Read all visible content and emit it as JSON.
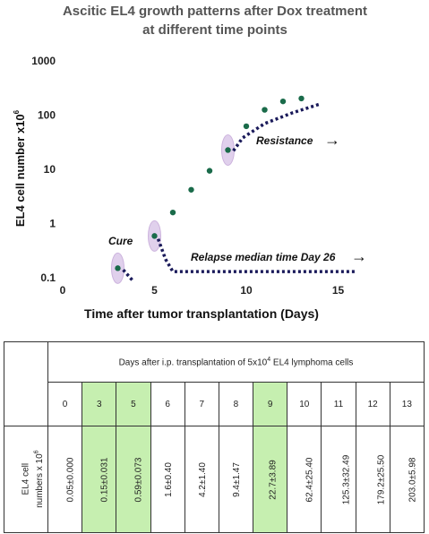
{
  "chart_data": {
    "type": "scatter",
    "title_line1": "Ascitic EL4 growth patterns after Dox treatment",
    "title_line2": "at different time points",
    "xlabel": "Time after tumor transplantation (Days)",
    "ylabel_main": "EL4 cell number x10",
    "ylabel_sup": "6",
    "x_ticks": [
      "0",
      "5",
      "10",
      "15"
    ],
    "y_ticks": [
      "0.1",
      "1",
      "10",
      "100",
      "1000"
    ],
    "y_scale": "log",
    "xlim": [
      0,
      16
    ],
    "ylim": [
      0.1,
      1000
    ],
    "points": [
      {
        "x": 3,
        "y": 0.15
      },
      {
        "x": 5,
        "y": 0.59
      },
      {
        "x": 6,
        "y": 1.6
      },
      {
        "x": 7,
        "y": 4.2
      },
      {
        "x": 8,
        "y": 9.4
      },
      {
        "x": 9,
        "y": 22.7
      },
      {
        "x": 10,
        "y": 62.4
      },
      {
        "x": 11,
        "y": 125.3
      },
      {
        "x": 12,
        "y": 179.2
      },
      {
        "x": 13,
        "y": 203.0
      }
    ],
    "highlighted_days": [
      3,
      5,
      9
    ],
    "trend_cure": [
      {
        "x": 3.3,
        "y": 0.14
      },
      {
        "x": 3.8,
        "y": 0.09
      }
    ],
    "trend_relapse": [
      {
        "x": 5.2,
        "y": 0.52
      },
      {
        "x": 5.6,
        "y": 0.22
      },
      {
        "x": 6.0,
        "y": 0.13
      },
      {
        "x": 16.0,
        "y": 0.13
      }
    ],
    "trend_resistance": [
      {
        "x": 9.3,
        "y": 22
      },
      {
        "x": 9.8,
        "y": 38
      },
      {
        "x": 11,
        "y": 70
      },
      {
        "x": 12.5,
        "y": 110
      },
      {
        "x": 14,
        "y": 160
      }
    ],
    "annotations": {
      "cure": "Cure",
      "relapse": "Relapse median time Day 26",
      "resistance": "Resistance",
      "arrow": "→"
    },
    "colors": {
      "point": "#1a6b4a",
      "trend": "#1a1a5a",
      "halo": "#e0d0ec",
      "highlight_cell": "#c6efb0"
    }
  },
  "table": {
    "header_text": "Days after i.p. transplantation of 5x10",
    "header_sup": "4",
    "header_tail": " EL4 lymphoma cells",
    "row_label_line1": "EL4 cell",
    "row_label_line2": "numbers x 10",
    "row_label_sup": "6",
    "days": [
      "0",
      "3",
      "5",
      "6",
      "7",
      "8",
      "9",
      "10",
      "11",
      "12",
      "13"
    ],
    "values": [
      "0.05±0.000",
      "0.15±0.031",
      "0.59±0.073",
      "1.6±0.40",
      "4.2±1.40",
      "9.4±1.47",
      "22.7±3.89",
      "62.4±25.40",
      "125.3±32.49",
      "179.2±25.50",
      "203.0±5.98"
    ],
    "highlighted": [
      false,
      true,
      true,
      false,
      false,
      false,
      true,
      false,
      false,
      false,
      false
    ]
  }
}
